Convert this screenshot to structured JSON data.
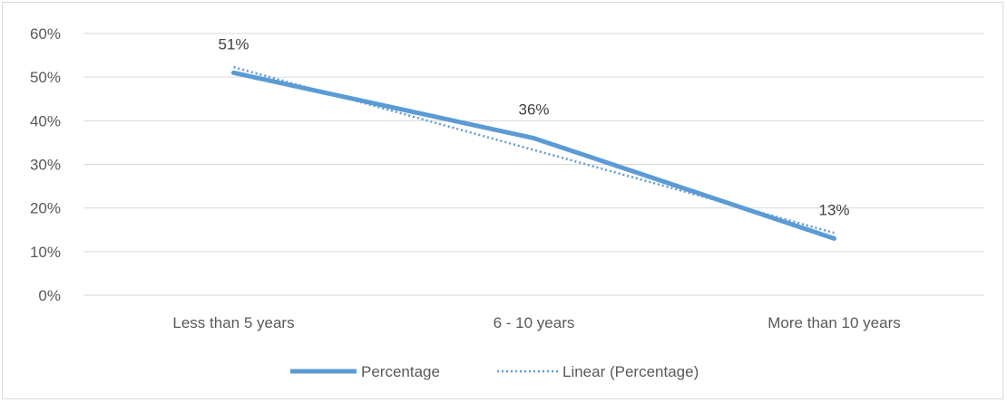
{
  "chart_data": {
    "type": "line",
    "categories": [
      "Less than 5 years",
      "6 - 10 years",
      "More than 10 years"
    ],
    "series": [
      {
        "name": "Percentage",
        "values": [
          51,
          36,
          13
        ],
        "color": "#5b9bd5",
        "style": "solid"
      },
      {
        "name": "Linear (Percentage)",
        "values": [
          52.3,
          33.3,
          14.3
        ],
        "color": "#5b9bd5",
        "style": "dotted"
      }
    ],
    "data_labels": [
      "51%",
      "36%",
      "13%"
    ],
    "yticks": [
      "0%",
      "10%",
      "20%",
      "30%",
      "40%",
      "50%",
      "60%"
    ],
    "ylim": [
      0,
      60
    ],
    "grid": true,
    "legend_position": "bottom"
  }
}
